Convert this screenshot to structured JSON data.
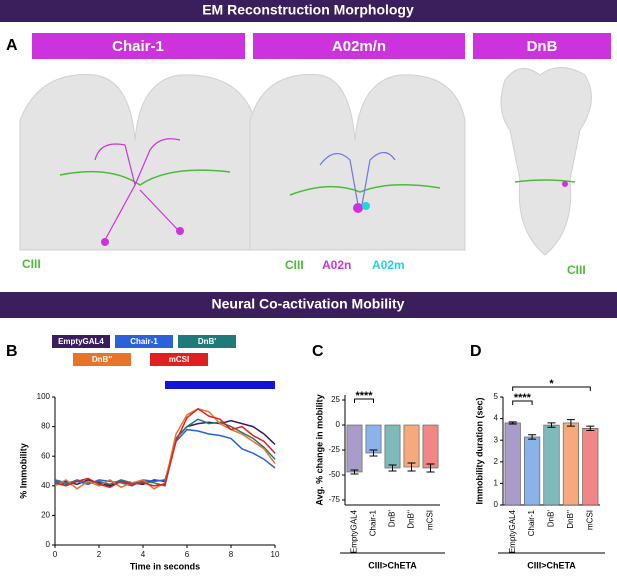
{
  "header": {
    "title": "EM Reconstruction Morphology",
    "panel": "A",
    "columns": [
      "Chair-1",
      "A02m/n",
      "DnB"
    ],
    "labels": {
      "cIII": "CIII",
      "a02n": "A02n",
      "a02m": "A02m"
    }
  },
  "section": {
    "title": "Neural Co-activation Mobility"
  },
  "chart_data": [
    {
      "type": "line",
      "panel": "B",
      "xlabel": "Time in seconds",
      "ylabel": "% Immobility",
      "x": [
        0,
        0.5,
        1,
        1.5,
        2,
        2.5,
        3,
        3.5,
        4,
        4.5,
        5,
        5.5,
        6,
        6.5,
        7,
        7.5,
        8,
        8.5,
        9,
        9.5,
        10
      ],
      "xlim": [
        0,
        10
      ],
      "xticks": [
        0,
        2,
        4,
        6,
        8,
        10
      ],
      "ylim": [
        0,
        100
      ],
      "yticks": [
        0,
        20,
        40,
        60,
        80,
        100
      ],
      "highlight": {
        "xlim": [
          5,
          10
        ],
        "color": "#1414d8"
      },
      "series": [
        {
          "name": "EmptyGAL4",
          "color": "#3a1d5e",
          "values": [
            42,
            43,
            41,
            44,
            42,
            40,
            43,
            42,
            41,
            44,
            43,
            72,
            80,
            82,
            83,
            82,
            84,
            82,
            80,
            75,
            68
          ]
        },
        {
          "name": "Chair-1",
          "color": "#2a62d8",
          "values": [
            44,
            42,
            43,
            41,
            44,
            43,
            42,
            40,
            44,
            43,
            44,
            70,
            78,
            77,
            75,
            74,
            72,
            65,
            62,
            58,
            52
          ]
        },
        {
          "name": "DnB'",
          "color": "#1f7a7a",
          "values": [
            43,
            41,
            44,
            42,
            43,
            41,
            44,
            42,
            43,
            42,
            40,
            72,
            80,
            85,
            82,
            83,
            80,
            76,
            72,
            66,
            58
          ]
        },
        {
          "name": "DnB''",
          "color": "#e8742c",
          "values": [
            40,
            44,
            38,
            43,
            40,
            44,
            39,
            42,
            44,
            38,
            42,
            75,
            88,
            92,
            90,
            82,
            78,
            75,
            70,
            65,
            55
          ]
        },
        {
          "name": "mCSI",
          "color": "#e02020",
          "values": [
            42,
            40,
            43,
            45,
            41,
            39,
            43,
            41,
            42,
            40,
            41,
            70,
            86,
            92,
            87,
            85,
            78,
            80,
            74,
            70,
            62
          ]
        }
      ]
    },
    {
      "type": "bar",
      "panel": "C",
      "ylabel": "Avg. % change in mobility",
      "group_label": "CIII>ChETA",
      "categories": [
        "EmptyGAL4",
        "Chair-1",
        "DnB'",
        "DnB''",
        "mCSI"
      ],
      "values": [
        -47,
        -28,
        -43,
        -42,
        -43
      ],
      "errors": [
        2,
        3,
        3,
        4,
        4
      ],
      "colors": [
        "#a99cca",
        "#8cb2ea",
        "#7fb9b9",
        "#f4aa7c",
        "#f18686"
      ],
      "ylim": [
        -80,
        30
      ],
      "yticks": [
        -75,
        -50,
        -25,
        0,
        25
      ],
      "brackets": [
        {
          "label": "****",
          "between": [
            "EmptyGAL4",
            "Chair-1"
          ]
        }
      ]
    },
    {
      "type": "bar",
      "panel": "D",
      "ylabel": "Immobility duration (sec)",
      "group_label": "CIII>ChETA",
      "categories": [
        "EmptyGAL4",
        "Chair-1",
        "DnB'",
        "DnB''",
        "mCSI"
      ],
      "values": [
        3.8,
        3.15,
        3.7,
        3.8,
        3.55
      ],
      "errors": [
        0.05,
        0.1,
        0.1,
        0.15,
        0.1
      ],
      "colors": [
        "#a99cca",
        "#8cb2ea",
        "#7fb9b9",
        "#f4aa7c",
        "#f18686"
      ],
      "ylim": [
        0,
        5
      ],
      "yticks": [
        0,
        1,
        2,
        3,
        4,
        5
      ],
      "brackets": [
        {
          "label": "****",
          "between": [
            "EmptyGAL4",
            "Chair-1"
          ]
        },
        {
          "label": "*",
          "between": [
            "EmptyGAL4",
            "mCSI"
          ]
        }
      ]
    }
  ]
}
